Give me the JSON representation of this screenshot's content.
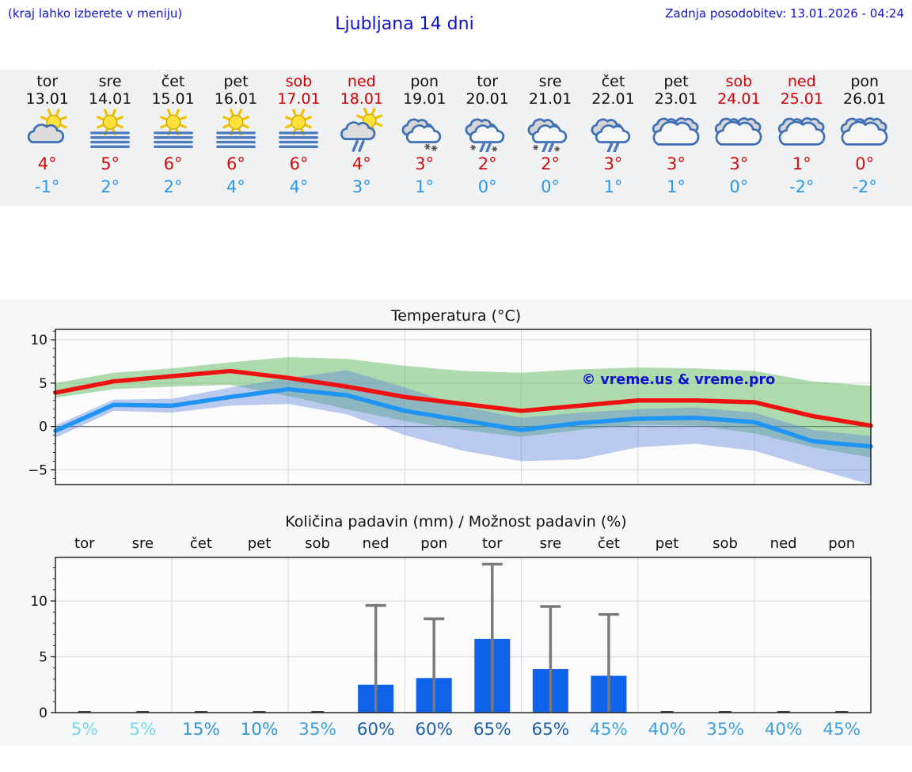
{
  "header": {
    "note": "(kraj lahko izberete v meniju)",
    "title": "Ljubljana 14 dni",
    "updated": "Zadnja posodobitev: 13.01.2026 - 04:24"
  },
  "colors": {
    "header_text": "#1010cc",
    "weekend_day": "#d00000",
    "temp_max": "#cf0d0d",
    "temp_min": "#2b96ea",
    "watermark": "#1111cc",
    "grid": "#dcdcdc",
    "zero_line": "#6b6b6b",
    "plot_bg": "#fbfbfc",
    "spine": "#1a1a1a"
  },
  "days": [
    {
      "name": "tor",
      "date": "13.01",
      "weekend": false,
      "icon": "sun-cloud",
      "tmax": "4°",
      "tmin": "-1°"
    },
    {
      "name": "sre",
      "date": "14.01",
      "weekend": false,
      "icon": "sun-fog",
      "tmax": "5°",
      "tmin": "2°"
    },
    {
      "name": "čet",
      "date": "15.01",
      "weekend": false,
      "icon": "sun-fog",
      "tmax": "6°",
      "tmin": "2°"
    },
    {
      "name": "pet",
      "date": "16.01",
      "weekend": false,
      "icon": "sun-fog",
      "tmax": "6°",
      "tmin": "4°"
    },
    {
      "name": "sob",
      "date": "17.01",
      "weekend": true,
      "icon": "sun-fog",
      "tmax": "6°",
      "tmin": "4°"
    },
    {
      "name": "ned",
      "date": "18.01",
      "weekend": true,
      "icon": "sun-cloud-rain",
      "tmax": "4°",
      "tmin": "3°"
    },
    {
      "name": "pon",
      "date": "19.01",
      "weekend": false,
      "icon": "cloud-snow",
      "tmax": "3°",
      "tmin": "1°"
    },
    {
      "name": "tor",
      "date": "20.01",
      "weekend": false,
      "icon": "cloud-sleet",
      "tmax": "2°",
      "tmin": "0°"
    },
    {
      "name": "sre",
      "date": "21.01",
      "weekend": false,
      "icon": "cloud-sleet",
      "tmax": "2°",
      "tmin": "0°"
    },
    {
      "name": "čet",
      "date": "22.01",
      "weekend": false,
      "icon": "cloud-rain",
      "tmax": "3°",
      "tmin": "1°"
    },
    {
      "name": "pet",
      "date": "23.01",
      "weekend": false,
      "icon": "cloudy",
      "tmax": "3°",
      "tmin": "1°"
    },
    {
      "name": "sob",
      "date": "24.01",
      "weekend": true,
      "icon": "cloudy",
      "tmax": "3°",
      "tmin": "0°"
    },
    {
      "name": "ned",
      "date": "25.01",
      "weekend": true,
      "icon": "cloudy",
      "tmax": "1°",
      "tmin": "-2°"
    },
    {
      "name": "pon",
      "date": "26.01",
      "weekend": false,
      "icon": "cloudy",
      "tmax": "0°",
      "tmin": "-2°"
    }
  ],
  "chart_data": [
    {
      "type": "line",
      "title": "Temperatura (°C)",
      "watermark": "© vreme.us & vreme.pro",
      "x": [
        0,
        1,
        2,
        3,
        4,
        5,
        6,
        7,
        8,
        9,
        10,
        11,
        12,
        13,
        14
      ],
      "series": [
        {
          "name": "max temperature",
          "color": "#ee1111",
          "values": [
            3.9,
            5.2,
            5.8,
            6.4,
            5.6,
            4.6,
            3.4,
            2.6,
            1.8,
            2.4,
            3.0,
            3.0,
            2.8,
            1.2,
            0.1
          ]
        },
        {
          "name": "min temperature",
          "color": "#2094f3",
          "values": [
            -0.5,
            2.5,
            2.4,
            3.4,
            4.3,
            3.6,
            1.8,
            0.7,
            -0.4,
            0.4,
            0.9,
            1.0,
            0.5,
            -1.7,
            -2.3
          ]
        }
      ],
      "bands": [
        {
          "name": "max range",
          "color": "rgba(80,180,80,0.45)",
          "top": [
            5.0,
            6.2,
            6.7,
            7.4,
            8.0,
            7.8,
            7.0,
            6.4,
            6.2,
            6.6,
            6.8,
            6.7,
            6.4,
            5.2,
            4.7
          ],
          "bottom": [
            3.3,
            4.3,
            4.6,
            4.8,
            3.5,
            2.0,
            0.6,
            -0.4,
            -1.2,
            -0.4,
            0.2,
            0.1,
            -0.8,
            -2.4,
            -3.6
          ]
        },
        {
          "name": "min range",
          "color": "rgba(90,130,220,0.40)",
          "top": [
            0.1,
            3.1,
            3.2,
            4.5,
            5.6,
            6.5,
            4.5,
            2.3,
            1.0,
            1.6,
            2.0,
            2.2,
            1.6,
            -0.4,
            -1.1
          ],
          "bottom": [
            -1.3,
            1.8,
            1.6,
            2.4,
            2.6,
            1.4,
            -1.0,
            -2.8,
            -4.0,
            -3.8,
            -2.4,
            -2.0,
            -2.8,
            -4.8,
            -6.8
          ]
        }
      ],
      "ylim": [
        -6.7,
        11.2
      ],
      "yticks": [
        -5,
        0,
        5,
        10
      ],
      "x_gridlines_days": [
        2,
        4,
        6,
        8,
        10,
        12
      ],
      "x_days": 14,
      "grid": true,
      "legend": "none"
    },
    {
      "type": "bar",
      "title": "Količina padavin (mm) / Možnost padavin (%)",
      "categories": [
        "tor",
        "sre",
        "čet",
        "pet",
        "sob",
        "ned",
        "pon",
        "tor",
        "sre",
        "čet",
        "pet",
        "sob",
        "ned",
        "pon"
      ],
      "values_mm": [
        0,
        0,
        0,
        0,
        0,
        2.5,
        3.1,
        6.6,
        3.9,
        3.3,
        0,
        0,
        0,
        0
      ],
      "whisker_max_mm": [
        null,
        null,
        null,
        null,
        null,
        9.6,
        8.4,
        13.3,
        9.5,
        8.8,
        null,
        null,
        null,
        null
      ],
      "probabilities_pct": [
        "5%",
        "5%",
        "15%",
        "10%",
        "35%",
        "60%",
        "60%",
        "65%",
        "65%",
        "45%",
        "40%",
        "35%",
        "40%",
        "45%"
      ],
      "prob_colors": [
        "#76d8e3",
        "#76d8e3",
        "#2f93cf",
        "#2f93cf",
        "#3f9fd8",
        "#1d5ea6",
        "#1d5ea6",
        "#1d5ea6",
        "#1d5ea6",
        "#3f9fd8",
        "#3f9fd8",
        "#3f9fd8",
        "#3f9fd8",
        "#3f9fd8"
      ],
      "ylim": [
        0,
        13.9
      ],
      "yticks": [
        0,
        5,
        10
      ],
      "x_gridlines_days": [
        2,
        4,
        6,
        8,
        10,
        12
      ],
      "bar_color": "#0f63e8",
      "whisker_color": "#7a7a7a",
      "grid": true
    }
  ]
}
